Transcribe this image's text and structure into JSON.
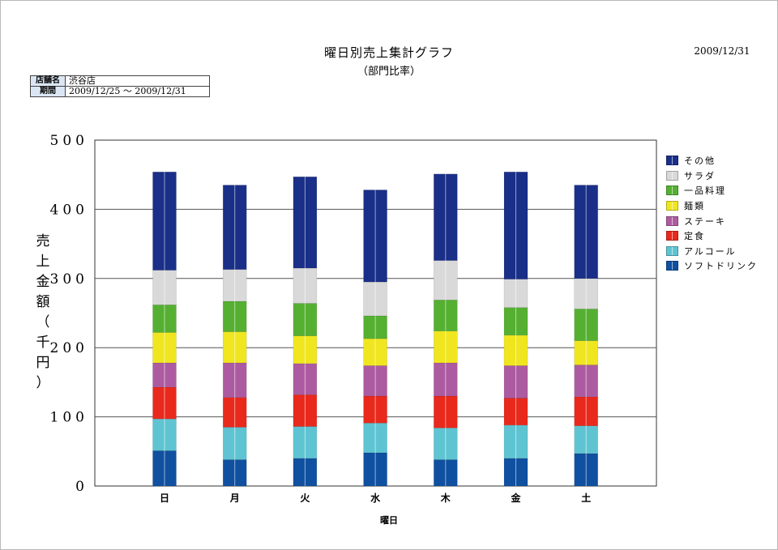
{
  "header": {
    "title": "曜日別売上集計グラフ",
    "subtitle": "（部門比率）",
    "date": "2009/12/31"
  },
  "info": [
    {
      "key": "店舗名",
      "value": "渋谷店"
    },
    {
      "key": "期間",
      "value": "2009/12/25 〜 2009/12/31"
    }
  ],
  "chart_data": {
    "type": "bar",
    "stacked": true,
    "xlabel": "曜日",
    "ylabel": "売上金額（千円）",
    "ylabel_chars": [
      "売",
      "上",
      "金",
      "額",
      "（",
      "千",
      "円",
      "）"
    ],
    "ylim": [
      0,
      500
    ],
    "yticks": [
      0,
      100,
      200,
      300,
      400,
      500
    ],
    "ytick_labels": [
      "0",
      "100",
      "200",
      "300",
      "400",
      "500"
    ],
    "grid": true,
    "legend_position": "right",
    "categories": [
      "日",
      "月",
      "火",
      "水",
      "木",
      "金",
      "土"
    ],
    "series": [
      {
        "name": "ソフトドリンク",
        "color": "#1050a0",
        "values": [
          51,
          38,
          40,
          48,
          38,
          40,
          47
        ]
      },
      {
        "name": "アルコール",
        "color": "#5fc4d2",
        "values": [
          46,
          47,
          46,
          43,
          46,
          48,
          40
        ]
      },
      {
        "name": "定食",
        "color": "#e8291c",
        "values": [
          46,
          43,
          46,
          39,
          46,
          39,
          42
        ]
      },
      {
        "name": "ステーキ",
        "color": "#ad5ba1",
        "values": [
          35,
          50,
          45,
          44,
          48,
          47,
          46
        ]
      },
      {
        "name": "麺類",
        "color": "#f0e620",
        "values": [
          44,
          45,
          40,
          39,
          46,
          44,
          35
        ]
      },
      {
        "name": "一品料理",
        "color": "#55b032",
        "values": [
          40,
          44,
          47,
          33,
          45,
          40,
          46
        ]
      },
      {
        "name": "サラダ",
        "color": "#d9d9d9",
        "values": [
          50,
          46,
          51,
          49,
          57,
          41,
          44
        ]
      },
      {
        "name": "その他",
        "color": "#1a2f88",
        "values": [
          142,
          122,
          132,
          133,
          125,
          155,
          135
        ]
      }
    ]
  }
}
